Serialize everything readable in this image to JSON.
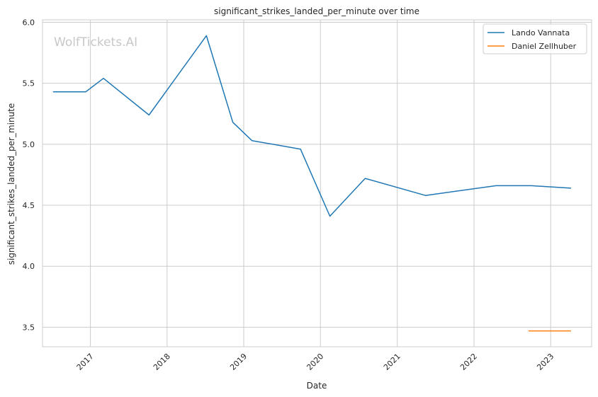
{
  "chart_data": {
    "type": "line",
    "title": "significant_strikes_landed_per_minute over time",
    "xlabel": "Date",
    "ylabel": "significant_strikes_landed_per_minute",
    "watermark": "WolfTickets.AI",
    "xlim": [
      "2016-05-18",
      "2023-07-15"
    ],
    "ylim": [
      3.34,
      6.02
    ],
    "x_ticks": [
      "2017",
      "2018",
      "2019",
      "2020",
      "2021",
      "2022",
      "2023"
    ],
    "y_ticks": [
      "3.5",
      "4.0",
      "4.5",
      "5.0",
      "5.5",
      "6.0"
    ],
    "grid": true,
    "legend_position": "top-right",
    "series": [
      {
        "name": "Lando Vannata",
        "color": "#1f77b4",
        "points": [
          [
            "2016-07-07",
            5.43
          ],
          [
            "2016-12-10",
            5.43
          ],
          [
            "2017-03-04",
            5.54
          ],
          [
            "2017-10-07",
            5.24
          ],
          [
            "2018-07-07",
            5.89
          ],
          [
            "2018-11-10",
            5.18
          ],
          [
            "2019-02-09",
            5.03
          ],
          [
            "2019-09-28",
            4.96
          ],
          [
            "2020-02-15",
            4.41
          ],
          [
            "2020-08-01",
            4.72
          ],
          [
            "2021-05-15",
            4.58
          ],
          [
            "2022-04-16",
            4.66
          ],
          [
            "2022-10-01",
            4.66
          ],
          [
            "2023-04-08",
            4.64
          ]
        ]
      },
      {
        "name": "Daniel Zellhuber",
        "color": "#ff7f0e",
        "points": [
          [
            "2022-09-17",
            3.47
          ],
          [
            "2023-04-08",
            3.47
          ]
        ]
      }
    ]
  }
}
